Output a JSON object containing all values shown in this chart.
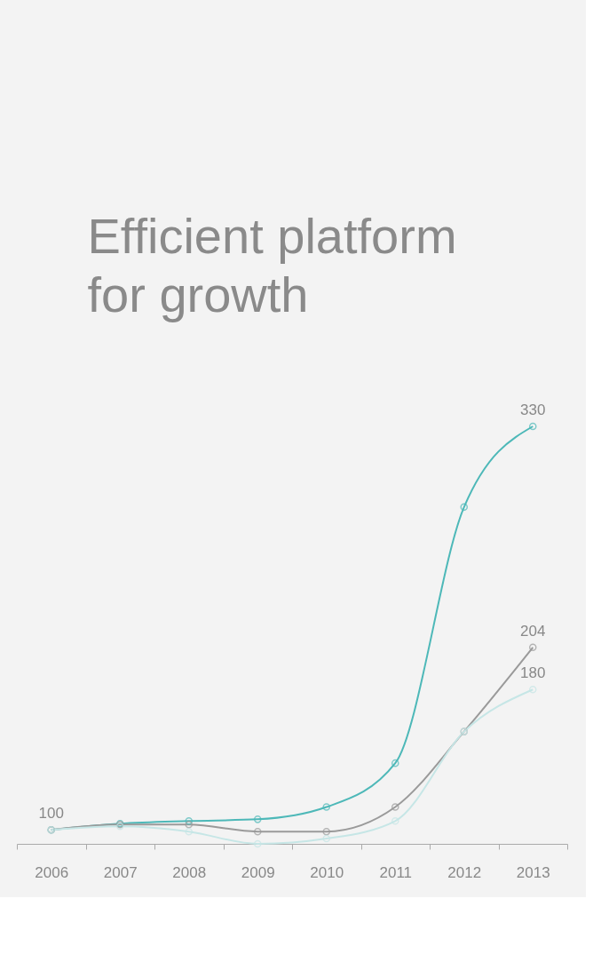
{
  "chart_data": {
    "type": "line",
    "title": "Efficient platform for growth",
    "categories": [
      "2006",
      "2007",
      "2008",
      "2009",
      "2010",
      "2011",
      "2012",
      "2013"
    ],
    "series": [
      {
        "color": "#4db8b8",
        "values": [
          100,
          103.5,
          105,
          106,
          113,
          138,
          284,
          330
        ],
        "value_labels": [
          null,
          null,
          null,
          null,
          null,
          null,
          null,
          "330"
        ]
      },
      {
        "color": "#9a9a9a",
        "values": [
          100,
          103,
          103,
          99,
          99,
          113,
          156,
          204
        ],
        "value_labels": [
          "100",
          null,
          null,
          null,
          null,
          null,
          null,
          "204"
        ]
      },
      {
        "color": "#c6e6e6",
        "values": [
          100,
          102,
          99,
          92,
          95,
          105,
          156,
          180
        ],
        "value_labels": [
          null,
          null,
          null,
          null,
          null,
          null,
          null,
          "180"
        ]
      }
    ],
    "legend": false,
    "grid": false,
    "marker": "circle",
    "line_style": "solid",
    "tick_labels": "x"
  }
}
